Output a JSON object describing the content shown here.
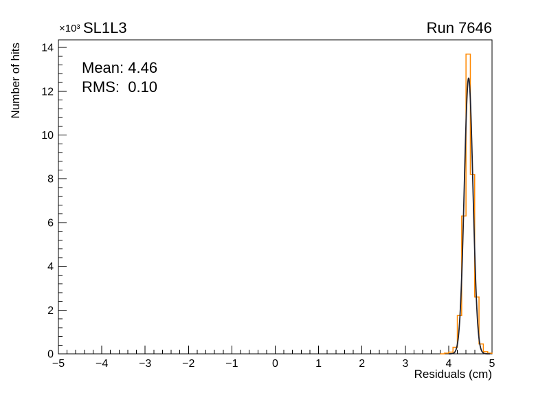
{
  "header": {
    "scale_label": "×10³",
    "title": "SL1L3",
    "corner_label": "Run 7646"
  },
  "stats": {
    "mean": "Mean: 4.46",
    "rms": "RMS:  0.10"
  },
  "axes": {
    "x_title": "Residuals (cm)",
    "y_title": "Number of hits"
  },
  "chart_data": {
    "type": "bar",
    "histogram_style": "step-outline",
    "title": "SL1L3",
    "corner_label": "Run 7646",
    "scale_label": "×10³",
    "annotations": {
      "mean": "Mean: 4.46",
      "rms": "RMS:  0.10"
    },
    "xlabel": "Residuals (cm)",
    "ylabel": "Number of hits",
    "xlim": [
      -5,
      5
    ],
    "ylim": [
      0,
      14.35
    ],
    "grid": false,
    "x_major_ticks": [
      -5,
      -4,
      -3,
      -2,
      -1,
      0,
      1,
      2,
      3,
      4,
      5
    ],
    "x_tick_labels": [
      "−5",
      "−4",
      "−3",
      "−2",
      "−1",
      "0",
      "1",
      "2",
      "3",
      "4",
      "5"
    ],
    "x_minor_step": 0.2,
    "y_major_ticks": [
      0,
      2,
      4,
      6,
      8,
      10,
      12,
      14
    ],
    "y_tick_labels": [
      "0",
      "2",
      "4",
      "6",
      "8",
      "10",
      "12",
      "14"
    ],
    "y_minor_step": 0.4,
    "y_unit_scale": "thousands of hits",
    "series": [
      {
        "name": "residuals-histogram",
        "kind": "step-histogram",
        "color": "#ff8800",
        "bin_start": 3.9,
        "bin_width": 0.1,
        "counts_thousands": [
          0.03,
          0.08,
          0.3,
          1.75,
          6.3,
          13.7,
          8.2,
          2.6,
          0.45,
          0.1,
          0.03
        ]
      },
      {
        "name": "gaussian-fit",
        "kind": "gaussian",
        "color": "#23222b",
        "amplitude_thousands": 12.6,
        "mean": 4.46,
        "sigma": 0.1,
        "range": [
          4.0,
          4.95
        ]
      }
    ]
  }
}
